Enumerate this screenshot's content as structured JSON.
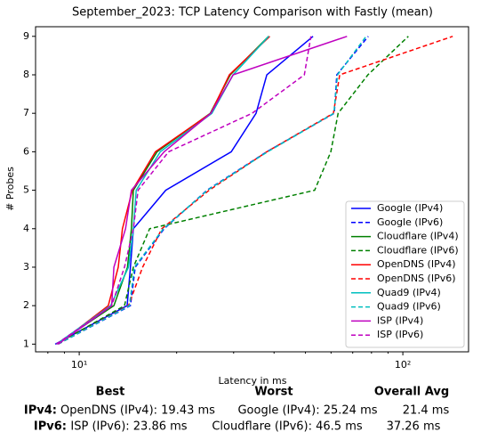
{
  "chart_data": {
    "type": "line",
    "title": "September_2023: TCP Latency Comparison with Fastly (mean)",
    "xlabel": "Latency in ms",
    "ylabel": "# Probes",
    "xscale": "log",
    "xlim": [
      7.33,
      159.6
    ],
    "ylim": [
      0.8,
      9.25
    ],
    "xticks": [
      {
        "value": 10,
        "label": "10¹"
      },
      {
        "value": 100,
        "label": "10²"
      }
    ],
    "xminorticks": [
      8,
      9,
      20,
      30,
      40,
      50,
      60,
      70,
      80,
      90
    ],
    "yticks": [
      1,
      2,
      3,
      4,
      5,
      6,
      7,
      8,
      9
    ],
    "legend": "lower right",
    "y": [
      1,
      2,
      3,
      4,
      5,
      6,
      7,
      8,
      9
    ],
    "series": [
      {
        "name": "Google (IPv4)",
        "color": "#0000ff",
        "linestyle": "solid",
        "x": [
          8.43,
          14.06,
          14.4,
          14.7,
          18.5,
          29.5,
          35.2,
          38.0,
          52.8
        ]
      },
      {
        "name": "Google (IPv6)",
        "color": "#0000ff",
        "linestyle": "dashed",
        "x": [
          8.6,
          14.4,
          14.9,
          18.3,
          24.8,
          38.0,
          61.4,
          62.5,
          78.2
        ]
      },
      {
        "name": "Cloudflare (IPv4)",
        "color": "#008000",
        "linestyle": "solid",
        "x": [
          8.5,
          12.8,
          14.1,
          14.5,
          14.7,
          17.4,
          25.4,
          29.3,
          38.5
        ]
      },
      {
        "name": "Cloudflare (IPv6)",
        "color": "#008000",
        "linestyle": "dashed",
        "x": [
          8.5,
          13.8,
          14.7,
          16.5,
          53.4,
          59.9,
          63.1,
          78.0,
          104
        ]
      },
      {
        "name": "OpenDNS (IPv4)",
        "color": "#ff0000",
        "linestyle": "solid",
        "x": [
          8.6,
          12.3,
          13.2,
          13.6,
          14.6,
          17.2,
          25.5,
          29.1,
          38.8
        ]
      },
      {
        "name": "OpenDNS (IPv6)",
        "color": "#ff0000",
        "linestyle": "dashed",
        "x": [
          8.6,
          14.2,
          15.7,
          18.0,
          25.2,
          38.0,
          61.0,
          63.8,
          142.6
        ]
      },
      {
        "name": "Quad9 (IPv4)",
        "color": "#00bfbf",
        "linestyle": "solid",
        "x": [
          8.5,
          12.5,
          14.2,
          14.7,
          15.0,
          17.8,
          25.7,
          29.9,
          38.5
        ]
      },
      {
        "name": "Quad9 (IPv6)",
        "color": "#00bfbf",
        "linestyle": "dashed",
        "x": [
          8.6,
          14.3,
          14.8,
          18.2,
          24.9,
          38.2,
          61.2,
          62.8,
          77.0
        ]
      },
      {
        "name": "ISP (IPv4)",
        "color": "#bf00bf",
        "linestyle": "solid",
        "x": [
          8.6,
          12.6,
          12.8,
          13.9,
          14.5,
          18.3,
          25.5,
          29.9,
          67.2
        ]
      },
      {
        "name": "ISP (IPv6)",
        "color": "#bf00bf",
        "linestyle": "dashed",
        "x": [
          8.5,
          12.6,
          13.8,
          14.7,
          15.2,
          18.9,
          34.2,
          49.6,
          52.0
        ]
      }
    ]
  },
  "summary": {
    "headers": [
      "Best",
      "Worst",
      "Overall Avg"
    ],
    "rows": [
      {
        "label": "IPv4:",
        "best": "OpenDNS (IPv4): 19.43 ms",
        "worst": "Google (IPv4): 25.24 ms",
        "avg": "21.4 ms"
      },
      {
        "label": "IPv6:",
        "best": "ISP (IPv6): 23.86 ms",
        "worst": "Cloudflare (IPv6): 46.5 ms",
        "avg": "37.26 ms"
      }
    ]
  }
}
